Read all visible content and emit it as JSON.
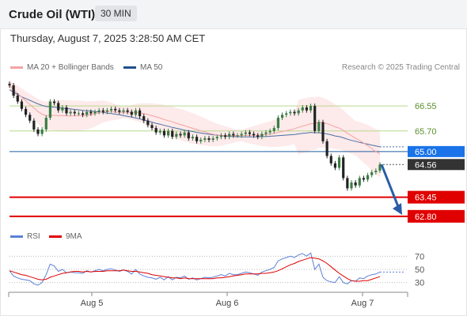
{
  "header": {
    "title": "Crude Oil (WTI)",
    "timeframe": "30 MIN"
  },
  "datetime": "Thursday, August 7, 2025 3:28:50 AM CET",
  "legend": {
    "ma20_label": "MA 20 + Bollinger Bands",
    "ma50_label": "MA 50",
    "rsi_label": "RSI",
    "rsi_ma_label": "9MA"
  },
  "credit": "Research © 2025 Trading Central",
  "colors": {
    "candle_up": "#3a7d44",
    "candle_down": "#222222",
    "ma20": "#f3a3a3",
    "ma50": "#4a6fa5",
    "band_fill": "#fde8e8",
    "resistance_line": "#b8d98c",
    "support_line": "#e00000",
    "pivot_line": "#1f5f9f",
    "arrow": "#2a5ca8",
    "rsi": "#5b80d6",
    "rsi_ma": "#e00000"
  },
  "chart_data": [
    {
      "type": "candlestick",
      "title": "Crude Oil (WTI)",
      "timeframe": "30 MIN",
      "x_tick_labels": [
        "Aug 5",
        "Aug 6",
        "Aug 7"
      ],
      "ylim": [
        62.5,
        67.6
      ],
      "levels": [
        {
          "label": "66.55",
          "value": 66.55,
          "kind": "resistance"
        },
        {
          "label": "65.70",
          "value": 65.7,
          "kind": "resistance"
        },
        {
          "label": "65.00",
          "value": 65.0,
          "kind": "pivot"
        },
        {
          "label": "64.56",
          "value": 64.56,
          "kind": "last_price"
        },
        {
          "label": "63.45",
          "value": 63.45,
          "kind": "support"
        },
        {
          "label": "62.80",
          "value": 62.8,
          "kind": "support"
        }
      ],
      "close": [
        67.25,
        66.9,
        66.7,
        66.45,
        66.25,
        66.05,
        65.75,
        65.6,
        65.75,
        66.15,
        66.7,
        66.65,
        66.4,
        66.5,
        66.3,
        66.35,
        66.3,
        66.3,
        66.25,
        66.35,
        66.3,
        66.35,
        66.4,
        66.35,
        66.4,
        66.45,
        66.4,
        66.35,
        66.4,
        66.35,
        66.25,
        66.4,
        66.2,
        66.05,
        65.9,
        65.8,
        65.65,
        65.7,
        65.55,
        65.7,
        65.5,
        65.6,
        65.55,
        65.65,
        65.45,
        65.5,
        65.35,
        65.4,
        65.45,
        65.4,
        65.45,
        65.5,
        65.55,
        65.5,
        65.6,
        65.55,
        65.55,
        65.6,
        65.65,
        65.6,
        65.55,
        65.5,
        65.6,
        65.65,
        65.7,
        65.8,
        66.15,
        66.25,
        66.3,
        66.35,
        66.3,
        66.4,
        66.5,
        66.4,
        66.55,
        65.7,
        66.0,
        65.35,
        64.85,
        64.6,
        64.45,
        64.8,
        64.1,
        63.75,
        63.95,
        63.85,
        64.1,
        64.05,
        64.2,
        64.3,
        64.35,
        64.56
      ],
      "ma20": [
        67.25,
        67.1,
        66.98,
        66.85,
        66.72,
        66.6,
        66.48,
        66.36,
        66.27,
        66.22,
        66.23,
        66.23,
        66.22,
        66.22,
        66.21,
        66.21,
        66.21,
        66.22,
        66.22,
        66.23,
        66.25,
        66.28,
        66.32,
        66.36,
        66.37,
        66.36,
        66.34,
        66.33,
        66.33,
        66.34,
        66.33,
        66.33,
        66.32,
        66.29,
        66.26,
        66.22,
        66.18,
        66.14,
        66.09,
        66.05,
        66.01,
        65.96,
        65.92,
        65.88,
        65.83,
        65.79,
        65.75,
        65.7,
        65.67,
        65.62,
        65.59,
        65.56,
        65.55,
        65.55,
        65.54,
        65.54,
        65.54,
        65.54,
        65.55,
        65.55,
        65.56,
        65.56,
        65.57,
        65.58,
        65.59,
        65.62,
        65.65,
        65.68,
        65.71,
        65.74,
        65.78,
        65.82,
        65.87,
        65.9,
        65.95,
        65.95,
        66.0,
        65.98,
        65.95,
        65.9,
        65.84,
        65.8,
        65.72,
        65.62,
        65.54,
        65.45,
        65.38,
        65.29,
        65.2,
        65.1,
        65.0,
        64.92
      ],
      "ma50": [
        67.1,
        67.02,
        66.94,
        66.86,
        66.8,
        66.74,
        66.68,
        66.62,
        66.57,
        66.53,
        66.52,
        66.51,
        66.49,
        66.48,
        66.46,
        66.45,
        66.43,
        66.42,
        66.4,
        66.39,
        66.38,
        66.36,
        66.35,
        66.33,
        66.31,
        66.29,
        66.27,
        66.25,
        66.22,
        66.2,
        66.17,
        66.14,
        66.11,
        66.07,
        66.04,
        66.0,
        65.96,
        65.93,
        65.89,
        65.86,
        65.82,
        65.79,
        65.76,
        65.73,
        65.7,
        65.68,
        65.65,
        65.63,
        65.61,
        65.59,
        65.57,
        65.56,
        65.54,
        65.53,
        65.52,
        65.51,
        65.51,
        65.5,
        65.5,
        65.5,
        65.5,
        65.5,
        65.51,
        65.51,
        65.52,
        65.53,
        65.54,
        65.55,
        65.56,
        65.57,
        65.58,
        65.6,
        65.62,
        65.63,
        65.65,
        65.64,
        65.64,
        65.62,
        65.6,
        65.57,
        65.53,
        65.51,
        65.47,
        65.42,
        65.38,
        65.35,
        65.31,
        65.28,
        65.25,
        65.22,
        65.19,
        65.16
      ]
    },
    {
      "type": "line",
      "title": "RSI",
      "yticks": [
        70,
        50,
        30
      ],
      "ylim": [
        20,
        80
      ],
      "series": [
        {
          "name": "RSI",
          "values": [
            48,
            40,
            37,
            35,
            34,
            33,
            28,
            26,
            30,
            42,
            58,
            55,
            47,
            50,
            45,
            46,
            45,
            45,
            44,
            48,
            46,
            48,
            50,
            48,
            50,
            51,
            49,
            47,
            49,
            47,
            43,
            50,
            43,
            40,
            38,
            37,
            35,
            38,
            34,
            39,
            34,
            38,
            37,
            40,
            35,
            37,
            34,
            36,
            38,
            37,
            38,
            40,
            42,
            40,
            44,
            42,
            42,
            44,
            46,
            45,
            43,
            41,
            46,
            48,
            50,
            53,
            63,
            66,
            68,
            70,
            68,
            72,
            74,
            70,
            75,
            50,
            58,
            38,
            33,
            31,
            30,
            39,
            30,
            28,
            33,
            32,
            37,
            36,
            40,
            42,
            43,
            46
          ]
        },
        {
          "name": "9MA",
          "values": [
            48,
            46,
            44,
            42,
            41,
            39,
            37,
            35,
            34,
            35,
            38,
            40,
            42,
            44,
            45,
            46,
            47,
            47,
            46,
            47,
            46,
            47,
            47,
            47,
            48,
            48,
            48,
            48,
            49,
            48,
            47,
            47,
            46,
            45,
            44,
            42,
            41,
            40,
            39,
            38,
            37,
            37,
            36,
            37,
            36,
            36,
            36,
            36,
            36,
            36,
            36,
            37,
            37,
            38,
            39,
            40,
            41,
            42,
            43,
            43,
            43,
            43,
            44,
            44,
            45,
            46,
            48,
            51,
            54,
            57,
            59,
            62,
            64,
            66,
            68,
            67,
            66,
            63,
            59,
            54,
            49,
            44,
            40,
            36,
            33,
            32,
            32,
            33,
            33,
            35,
            37,
            39
          ]
        }
      ]
    }
  ]
}
